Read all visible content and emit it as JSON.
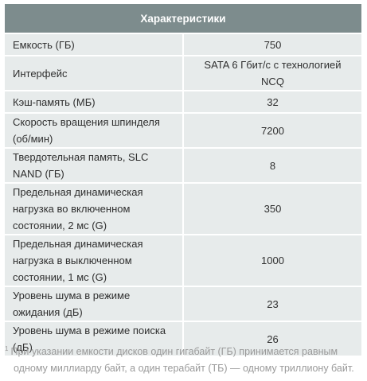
{
  "table": {
    "header": "Характеристики",
    "rows": [
      {
        "label": "Емкость (ГБ)",
        "value": "750"
      },
      {
        "label": "Интерфейс",
        "value": "SATA 6 Гбит/с с технологией NCQ"
      },
      {
        "label": "Кэш-память (МБ)",
        "value": "32"
      },
      {
        "label": "Скорость вращения шпинделя (об/мин)",
        "value": "7200"
      },
      {
        "label": "Твердотельная память, SLC NAND (ГБ)",
        "value": "8"
      },
      {
        "label": "Предельная динамическая нагрузка во включенном состоянии, 2 мс (G)",
        "value": "350"
      },
      {
        "label": "Предельная динамическая нагрузка в выключенном состоянии, 1 мс (G)",
        "value": "1000"
      },
      {
        "label": "Уровень шума в режиме ожидания (дБ)",
        "value": "23"
      },
      {
        "label": "Уровень шума в режиме поиска (дБ)",
        "value": "26"
      }
    ]
  },
  "footnote": {
    "marker": "1",
    "line1": "При указании емкости дисков один гигабайт (ГБ) принимается равным",
    "line2": "одному миллиарду байт, а один терабайт (ТБ) — одному триллиону байт."
  }
}
